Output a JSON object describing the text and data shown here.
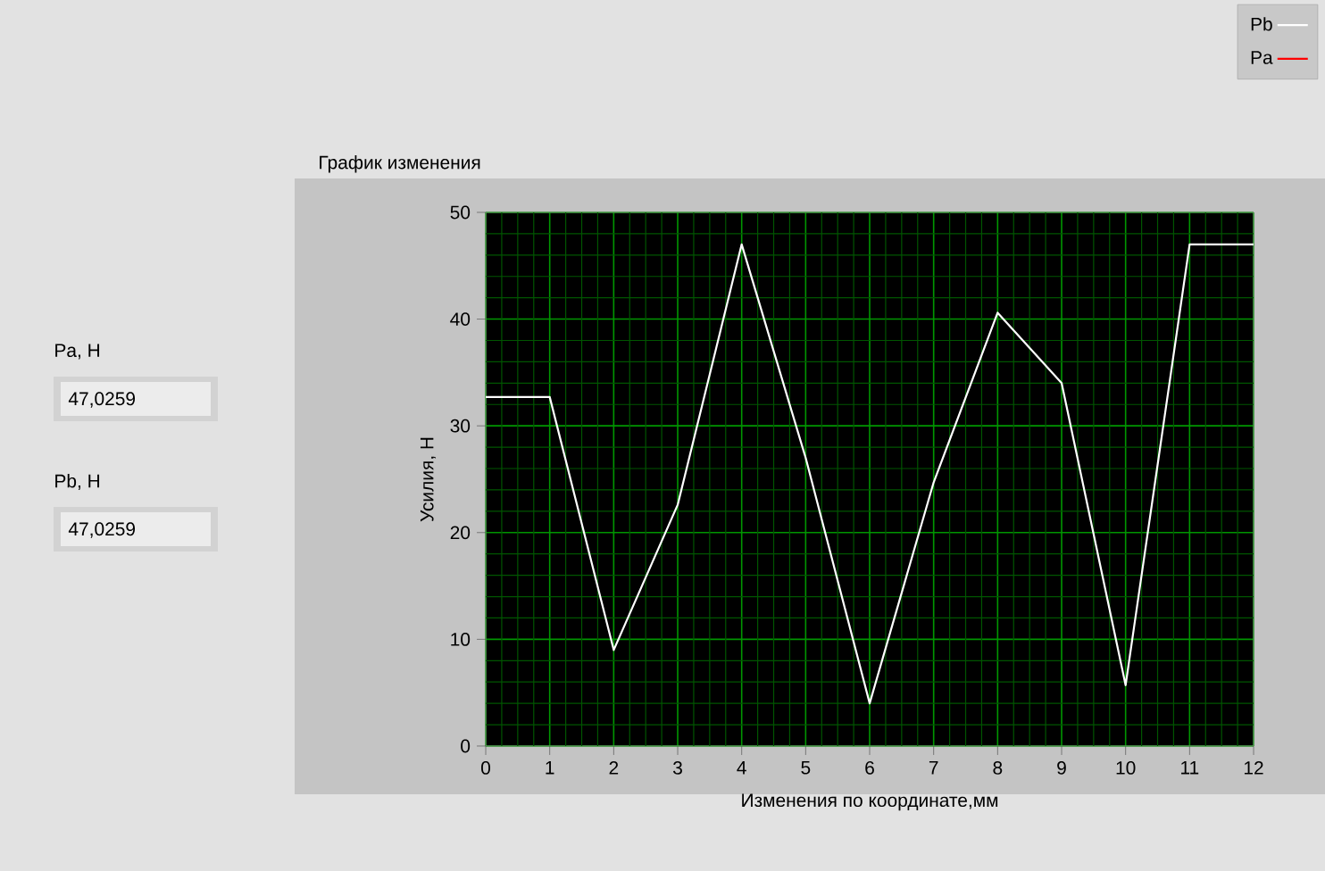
{
  "chart_data": {
    "type": "line",
    "title": "График изменения",
    "xlabel": "Изменения по координате,мм",
    "ylabel": "Усилия, Н",
    "x": [
      0,
      1,
      2,
      3,
      4,
      5,
      6,
      7,
      8,
      9,
      10,
      11,
      12
    ],
    "series": [
      {
        "name": "Pb",
        "color": "#ffffff",
        "values": [
          32.7,
          32.7,
          9,
          22.6,
          47,
          27,
          4,
          24.7,
          40.6,
          34,
          5.7,
          47,
          47
        ]
      },
      {
        "name": "Pa",
        "color": "#ff0000",
        "values": [
          null,
          null,
          null,
          null,
          null,
          null,
          null,
          null,
          null,
          null,
          null,
          null,
          null
        ]
      }
    ],
    "xlim": [
      0,
      12
    ],
    "ylim": [
      0,
      50
    ],
    "xticks": [
      0,
      1,
      2,
      3,
      4,
      5,
      6,
      7,
      8,
      9,
      10,
      11,
      12,
      {
        "value": 0.25,
        "label": null
      },
      {
        "value": 0.5,
        "label": null
      },
      {
        "value": 0.75,
        "label": null
      },
      {
        "value": 1.25,
        "label": null
      },
      {
        "value": 1.5,
        "label": null
      },
      {
        "value": 1.75,
        "label": null
      },
      {
        "value": 2.25,
        "label": null
      },
      {
        "value": 2.5,
        "label": null
      },
      {
        "value": 2.75,
        "label": null
      },
      {
        "value": 3.25,
        "label": null
      },
      {
        "value": 3.5,
        "label": null
      },
      {
        "value": 3.75,
        "label": null
      },
      {
        "value": 4.25,
        "label": null
      },
      {
        "value": 4.5,
        "label": null
      },
      {
        "value": 4.75,
        "label": null
      },
      {
        "value": 5.25,
        "label": null
      },
      {
        "value": 5.5,
        "label": null
      },
      {
        "value": 5.75,
        "label": null
      },
      {
        "value": 6.25,
        "label": null
      },
      {
        "value": 6.5,
        "label": null
      },
      {
        "value": 6.75,
        "label": null
      },
      {
        "value": 7.25,
        "label": null
      },
      {
        "value": 7.5,
        "label": null
      },
      {
        "value": 7.75,
        "label": null
      },
      {
        "value": 8.25,
        "label": null
      },
      {
        "value": 8.5,
        "label": null
      },
      {
        "value": 8.75,
        "label": null
      },
      {
        "value": 9.25,
        "label": null
      },
      {
        "value": 9.5,
        "label": null
      },
      {
        "value": 9.75,
        "label": null
      },
      {
        "value": 10.25,
        "label": null
      },
      {
        "value": 10.5,
        "label": null
      },
      {
        "value": 10.75,
        "label": null
      },
      {
        "value": 11.25,
        "label": null
      },
      {
        "value": 11.5,
        "label": null
      },
      {
        "value": 11.75,
        "label": null
      }
    ],
    "yticks": [
      0,
      10,
      20,
      30,
      40,
      50,
      {
        "value": 2,
        "label": null
      },
      {
        "value": 4,
        "label": null
      },
      {
        "value": 6,
        "label": null
      },
      {
        "value": 8,
        "label": null
      },
      {
        "value": 12,
        "label": null
      },
      {
        "value": 14,
        "label": null
      },
      {
        "value": 16,
        "label": null
      },
      {
        "value": 18,
        "label": null
      },
      {
        "value": 22,
        "label": null
      },
      {
        "value": 24,
        "label": null
      },
      {
        "value": 26,
        "label": null
      },
      {
        "value": 28,
        "label": null
      },
      {
        "value": 32,
        "label": null
      },
      {
        "value": 34,
        "label": null
      },
      {
        "value": 36,
        "label": null
      },
      {
        "value": 38,
        "label": null
      },
      {
        "value": 42,
        "label": null
      },
      {
        "value": 44,
        "label": null
      },
      {
        "value": 46,
        "label": null
      },
      {
        "value": 48,
        "label": null
      }
    ],
    "grid": true,
    "legend": "top right",
    "line_style": "solid",
    "marker": "none",
    "annotations": [
      "Pa, Н",
      "47,0259",
      "Pb, Н",
      "47,0259"
    ]
  }
}
